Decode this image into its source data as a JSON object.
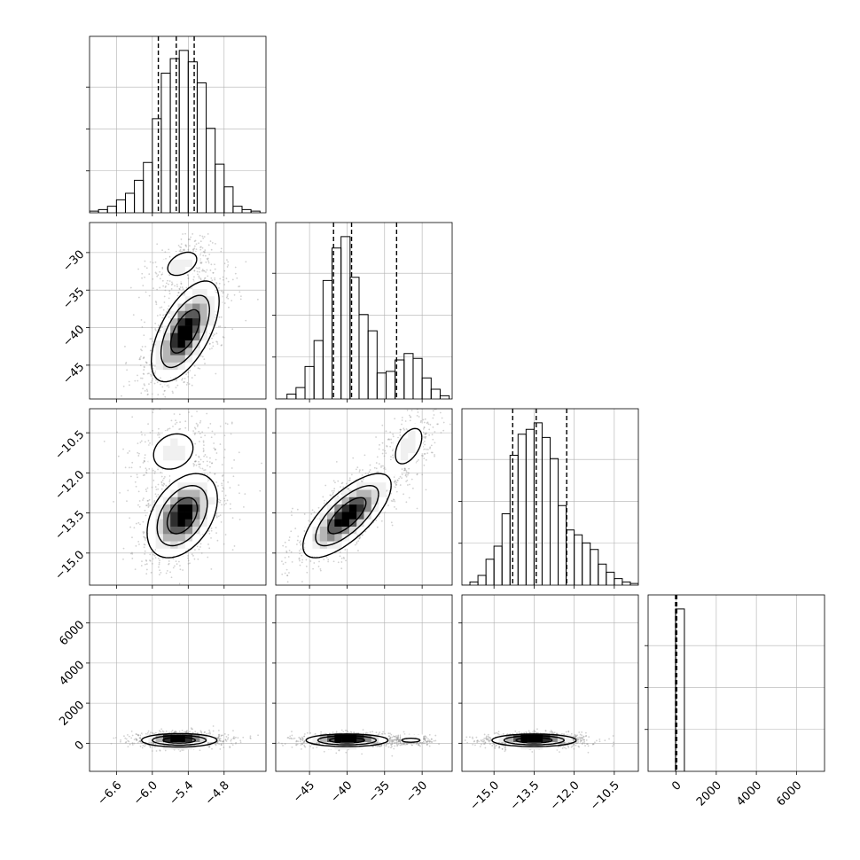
{
  "chart_data": {
    "type": "corner",
    "grid": true,
    "parameters": [
      {
        "id": "p0",
        "label": "",
        "range": [
          -7.05,
          -4.1
        ],
        "ticks": [
          "−6.6",
          "−6.0",
          "−5.4",
          "−4.8"
        ],
        "tick_values": [
          -6.6,
          -6.0,
          -5.4,
          -4.8
        ],
        "quantiles": [
          -5.9,
          -5.6,
          -5.3
        ]
      },
      {
        "id": "p1",
        "label": "",
        "range": [
          -49.5,
          -26.0
        ],
        "ticks": [
          "−45",
          "−40",
          "−35",
          "−30"
        ],
        "tick_values": [
          -45,
          -40,
          -35,
          -30
        ],
        "quantiles": [
          -41.8,
          -39.4,
          -33.4
        ]
      },
      {
        "id": "p2",
        "label": "",
        "range": [
          -16.2,
          -9.6
        ],
        "ticks": [
          "−15.0",
          "−13.5",
          "−12.0",
          "−10.5"
        ],
        "tick_values": [
          -15.0,
          -13.5,
          -12.0,
          -10.5
        ],
        "quantiles": [
          -14.3,
          -13.42,
          -12.28
        ]
      },
      {
        "id": "p3",
        "label": "",
        "range": [
          -1400,
          7400
        ],
        "ticks": [
          "0",
          "2000",
          "4000",
          "6000"
        ],
        "tick_values": [
          0,
          2000,
          4000,
          6000
        ],
        "quantiles": [
          -30,
          0,
          30
        ]
      }
    ],
    "histograms": [
      {
        "param": "p0",
        "bin_edges": [
          -7.05,
          -6.9,
          -6.75,
          -6.6,
          -6.45,
          -6.3,
          -6.15,
          -6.0,
          -5.85,
          -5.7,
          -5.55,
          -5.4,
          -5.25,
          -5.1,
          -4.95,
          -4.8,
          -4.65,
          -4.5,
          -4.35,
          -4.2
        ],
        "counts": [
          0.01,
          0.02,
          0.04,
          0.08,
          0.12,
          0.2,
          0.31,
          0.58,
          0.86,
          0.95,
          1.0,
          0.93,
          0.8,
          0.52,
          0.3,
          0.16,
          0.04,
          0.02,
          0.01
        ]
      },
      {
        "param": "p1",
        "bin_edges": [
          -49.2,
          -48.0,
          -46.8,
          -45.6,
          -44.4,
          -43.2,
          -42.0,
          -40.8,
          -39.6,
          -38.4,
          -37.2,
          -36.0,
          -34.8,
          -33.6,
          -32.4,
          -31.2,
          -30.0,
          -28.8,
          -27.6,
          -26.4
        ],
        "counts": [
          0.0,
          0.03,
          0.07,
          0.2,
          0.36,
          0.73,
          0.93,
          1.0,
          0.75,
          0.52,
          0.42,
          0.16,
          0.17,
          0.24,
          0.28,
          0.25,
          0.13,
          0.06,
          0.02
        ]
      },
      {
        "param": "p2",
        "bin_edges": [
          -16.2,
          -15.9,
          -15.6,
          -15.3,
          -15.0,
          -14.7,
          -14.4,
          -14.1,
          -13.8,
          -13.5,
          -13.2,
          -12.9,
          -12.6,
          -12.3,
          -12.0,
          -11.7,
          -11.4,
          -11.1,
          -10.8,
          -10.5,
          -10.2,
          -9.9,
          -9.6
        ],
        "counts": [
          0.0,
          0.02,
          0.06,
          0.16,
          0.24,
          0.44,
          0.8,
          0.93,
          0.96,
          1.0,
          0.91,
          0.78,
          0.49,
          0.34,
          0.31,
          0.26,
          0.22,
          0.13,
          0.08,
          0.04,
          0.02,
          0.01
        ]
      },
      {
        "param": "p3",
        "bin_edges": [
          -30,
          410
        ],
        "counts": [
          1.0
        ]
      }
    ],
    "density_blobs": [
      {
        "x": "p0",
        "y": "p1",
        "components": [
          {
            "mx": -5.45,
            "my": -40.5,
            "sx": 0.27,
            "sy": 3.2,
            "rho": 0.6,
            "w": 1.0
          },
          {
            "mx": -5.5,
            "my": -31.5,
            "sx": 0.22,
            "sy": 1.4,
            "rho": 0.4,
            "w": 0.3
          }
        ]
      },
      {
        "x": "p0",
        "y": "p2",
        "components": [
          {
            "mx": -5.5,
            "my": -13.6,
            "sx": 0.28,
            "sy": 0.75,
            "rho": 0.4,
            "w": 1.0
          },
          {
            "mx": -5.65,
            "my": -11.2,
            "sx": 0.3,
            "sy": 0.6,
            "rho": 0.2,
            "w": 0.28
          }
        ]
      },
      {
        "x": "p0",
        "y": "p3",
        "components": [
          {
            "mx": -5.55,
            "my": 150,
            "sx": 0.3,
            "sy": 160,
            "rho": 0.0,
            "w": 1.0
          }
        ]
      },
      {
        "x": "p1",
        "y": "p2",
        "components": [
          {
            "mx": -40.0,
            "my": -13.6,
            "sx": 2.8,
            "sy": 0.75,
            "rho": 0.72,
            "w": 1.0
          },
          {
            "mx": -31.8,
            "my": -11.0,
            "sx": 1.6,
            "sy": 0.6,
            "rho": 0.5,
            "w": 0.32
          }
        ]
      },
      {
        "x": "p1",
        "y": "p3",
        "components": [
          {
            "mx": -40.0,
            "my": 150,
            "sx": 2.6,
            "sy": 150,
            "rho": 0.0,
            "w": 1.0
          },
          {
            "mx": -31.5,
            "my": 150,
            "sx": 1.1,
            "sy": 90,
            "rho": 0.0,
            "w": 0.3
          }
        ]
      },
      {
        "x": "p2",
        "y": "p3",
        "components": [
          {
            "mx": -13.5,
            "my": 150,
            "sx": 0.75,
            "sy": 150,
            "rho": 0.0,
            "w": 1.0
          }
        ]
      }
    ],
    "colors": {
      "hist": "#000000",
      "contour": "#000000",
      "point": "#9a9a9a",
      "grid": "#b0b0b0",
      "density_high": "#000000",
      "density_low": "#ffffff"
    }
  }
}
